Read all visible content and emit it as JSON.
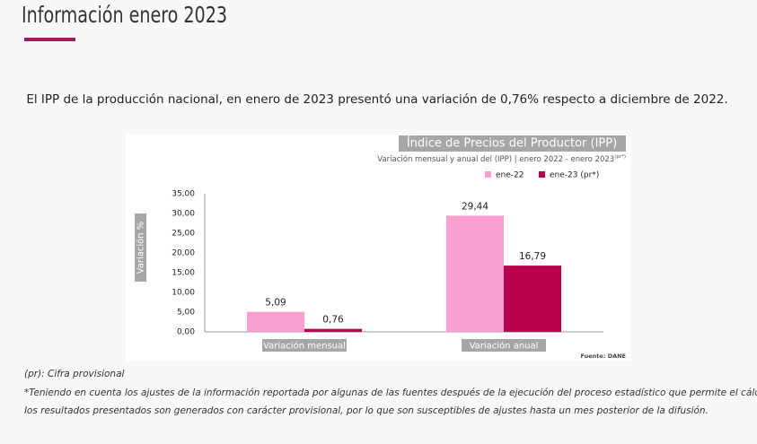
{
  "header": {
    "title": "Información enero 2023"
  },
  "intro": "El IPP de la producción nacional, en enero de 2023 presentó una variación de 0,76% respecto a diciembre de 2022.",
  "chart_data": {
    "type": "bar",
    "title": "Índice de Precios del Productor (IPP)",
    "subtitle": "Variación mensual  y anual del (IPP) | enero 2022 - enero 2023",
    "subtitle_sup": "(pr*)",
    "ylabel": "Variación %",
    "source": "Fuente: DANE",
    "categories": [
      "Variación mensual",
      "Variación anual"
    ],
    "series": [
      {
        "name": "ene-22",
        "color": "#f99fd0",
        "values": [
          5.09,
          29.44
        ],
        "value_labels": [
          "5,09",
          "29,44"
        ]
      },
      {
        "name": "ene-23 (pr*)",
        "color": "#b8004f",
        "values": [
          0.76,
          16.79
        ],
        "value_labels": [
          "0,76",
          "16,79"
        ]
      }
    ],
    "ylim": [
      0,
      35
    ],
    "yticks": [
      {
        "value": 0,
        "label": "0,00"
      },
      {
        "value": 5,
        "label": "5,00"
      },
      {
        "value": 10,
        "label": "10,00"
      },
      {
        "value": 15,
        "label": "15,00"
      },
      {
        "value": 20,
        "label": "20,00"
      },
      {
        "value": 25,
        "label": "25,00"
      },
      {
        "value": 30,
        "label": "30,00"
      },
      {
        "value": 35,
        "label": "35,00"
      }
    ],
    "grid": false,
    "legend": "top-right"
  },
  "notes": [
    "(pr): Cifra provisional",
    "*Teniendo en cuenta los ajustes de la información reportada por algunas de las fuentes después de la ejecución del proceso estadístico que permite el cálculo del IPP,",
    "los resultados presentados son generados con carácter provisional, por lo que son susceptibles de ajustes hasta un mes posterior de la difusión."
  ]
}
